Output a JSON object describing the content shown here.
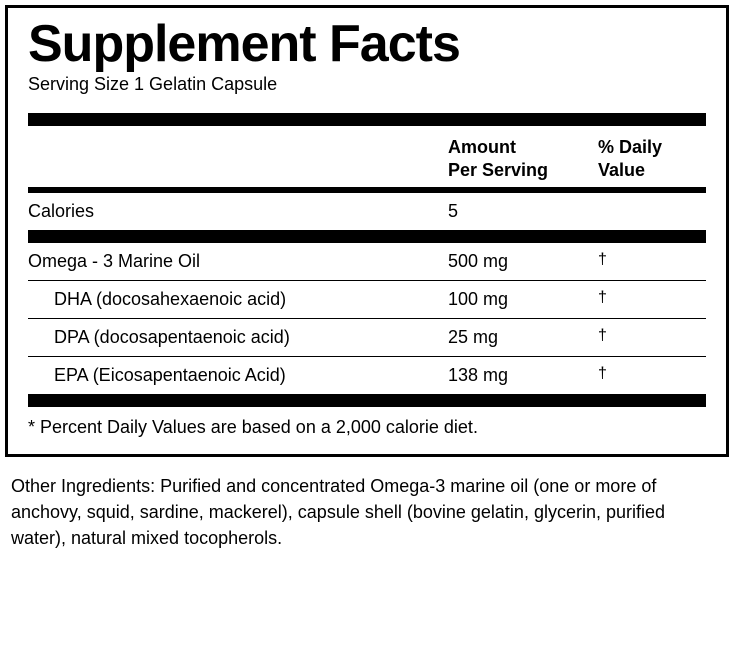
{
  "panel": {
    "title": "Supplement Facts",
    "serving": "Serving Size 1 Gelatin Capsule",
    "header": {
      "amount": "Amount\nPer Serving",
      "dv": "% Daily\nValue"
    },
    "calories": {
      "label": "Calories",
      "value": "5"
    },
    "rows": [
      {
        "name": "Omega - 3 Marine Oil",
        "amount": "500 mg",
        "dv": "†",
        "indent": false
      },
      {
        "name": "DHA (docosahexaenoic acid)",
        "amount": "100 mg",
        "dv": "†",
        "indent": true
      },
      {
        "name": "DPA (docosapentaenoic acid)",
        "amount": "25 mg",
        "dv": "†",
        "indent": true
      },
      {
        "name": "EPA (Eicosapentaenoic Acid)",
        "amount": "138 mg",
        "dv": "†",
        "indent": true
      }
    ],
    "footnote": "* Percent Daily Values are based on a 2,000 calorie diet."
  },
  "other_ingredients": "Other Ingredients: Purified and concentrated Omega-3 marine oil (one or more of anchovy, squid, sardine, mackerel), capsule shell (bovine gelatin, glycerin, purified water), natural mixed tocopherols.",
  "style": {
    "border_color": "#000000",
    "background_color": "#ffffff",
    "title_fontsize": 52,
    "body_fontsize": 18,
    "thick_bar_height": 13,
    "col_name_width": 420,
    "col_amt_width": 150
  }
}
